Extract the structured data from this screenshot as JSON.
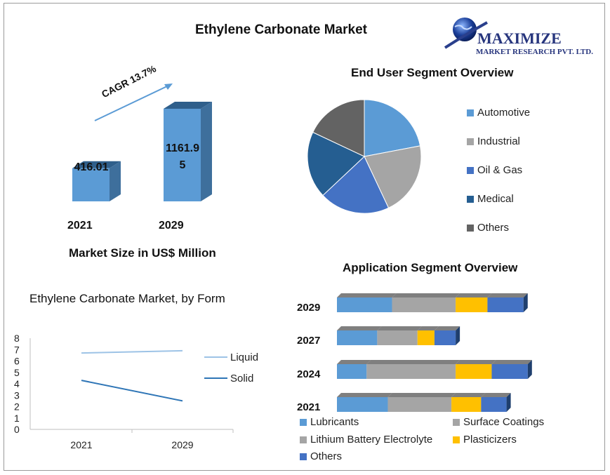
{
  "title": "Ethylene Carbonate Market",
  "logo": {
    "line1": "MAXIMIZE",
    "line2": "MARKET RESEARCH PVT. LTD."
  },
  "colors": {
    "front": "#5b9bd5",
    "side": "#3e6f9c",
    "top": "#2f5f8b",
    "automotive": "#5b9bd5",
    "industrial": "#a5a5a5",
    "oil_gas": "#4472c4",
    "medical": "#255e91",
    "others": "#636363",
    "plasticizers": "#ffc000"
  },
  "chart_data": [
    {
      "type": "bar",
      "categories": [
        "2021",
        "2029"
      ],
      "values": [
        416.01,
        1161.95
      ],
      "value_labels": [
        "416.01",
        "1161.9\n5"
      ],
      "xlabel": "Market Size in US$ Million",
      "annotation": "CAGR 13.7%"
    },
    {
      "type": "pie",
      "title": "End User Segment Overview",
      "categories": [
        "Automotive",
        "Industrial",
        "Oil & Gas",
        "Medical",
        "Others"
      ],
      "values": [
        22,
        21,
        20,
        19,
        18
      ],
      "legend": "right"
    },
    {
      "type": "line",
      "title": "Ethylene Carbonate Market, by Form",
      "x": [
        "2021",
        "2029"
      ],
      "series": [
        {
          "name": "Liquid",
          "values": [
            6.7,
            6.9
          ]
        },
        {
          "name": "Solid",
          "values": [
            4.3,
            2.5
          ]
        }
      ],
      "ylim": [
        0,
        8
      ],
      "yticks": [
        "0",
        "1",
        "2",
        "3",
        "4",
        "5",
        "6",
        "7",
        "8"
      ],
      "legend": "right"
    },
    {
      "type": "bar",
      "orientation": "horizontal-stacked",
      "title": "Application Segment Overview",
      "categories": [
        "2029",
        "2027",
        "2024",
        "2021"
      ],
      "series": [
        {
          "name": "Lubricants",
          "values": [
            26,
            19,
            14,
            24
          ]
        },
        {
          "name": "Surface Coatings",
          "values": [
            30,
            19,
            42,
            30
          ]
        },
        {
          "name": "Lithium Battery Electrolyte",
          "values": [
            0,
            0,
            0,
            0
          ]
        },
        {
          "name": "Plasticizers",
          "values": [
            15,
            8,
            17,
            14
          ]
        },
        {
          "name": "Others",
          "values": [
            17,
            10,
            17,
            12
          ]
        }
      ],
      "legend": "bottom"
    }
  ]
}
